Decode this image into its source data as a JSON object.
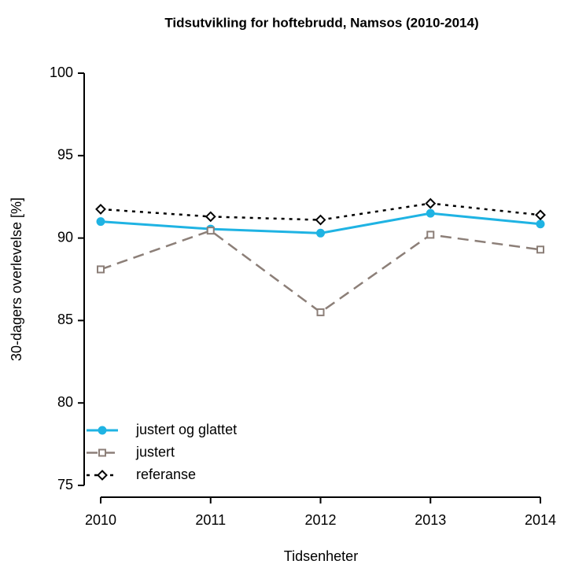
{
  "chart_data": {
    "type": "line",
    "title": "Tidsutvikling for hoftebrudd, Namsos (2010-2014)",
    "x_label": "Tidsenheter",
    "y_label": "30-dagers overlevelse [%]",
    "x": [
      2010,
      2011,
      2012,
      2013,
      2014
    ],
    "xlim": [
      2010,
      2014
    ],
    "xticks": [
      2010,
      2011,
      2012,
      2013,
      2014
    ],
    "ylim": [
      75,
      100
    ],
    "yticks": [
      75,
      80,
      85,
      90,
      95,
      100
    ],
    "legend": "bottom-left",
    "series": [
      {
        "name": "justert og glattet",
        "color": "#1fb3e3",
        "line_style": "solid",
        "marker": "circle",
        "values": [
          91.0,
          90.55,
          90.3,
          91.5,
          90.85
        ]
      },
      {
        "name": "justert",
        "color": "#8c7f78",
        "line_style": "dashed",
        "marker": "square",
        "values": [
          88.1,
          90.45,
          85.5,
          90.2,
          89.3
        ]
      },
      {
        "name": "referanse",
        "color": "#000000",
        "line_style": "dotted",
        "marker": "diamond",
        "values": [
          91.75,
          91.3,
          91.1,
          92.1,
          91.4
        ]
      }
    ]
  }
}
